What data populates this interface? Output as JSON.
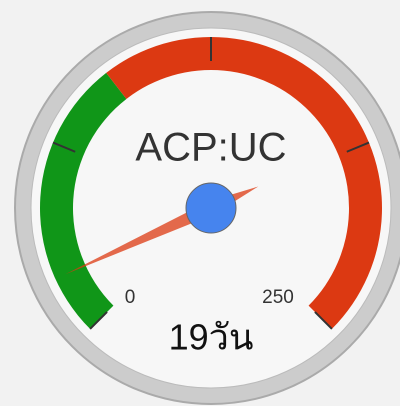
{
  "chart_data": {
    "type": "gauge",
    "label": "ACP:UC",
    "value": 19,
    "value_label": "19วัน",
    "ylim": [
      0,
      250
    ],
    "major_ticks": [
      0,
      62.5,
      125,
      187.5,
      250
    ],
    "bands": [
      {
        "from": 0,
        "to": 90,
        "color": "#109618"
      },
      {
        "from": 90,
        "to": 250,
        "color": "#dc3912"
      }
    ],
    "needle_color": "#dc3912",
    "hub_color": "#4684ee"
  }
}
